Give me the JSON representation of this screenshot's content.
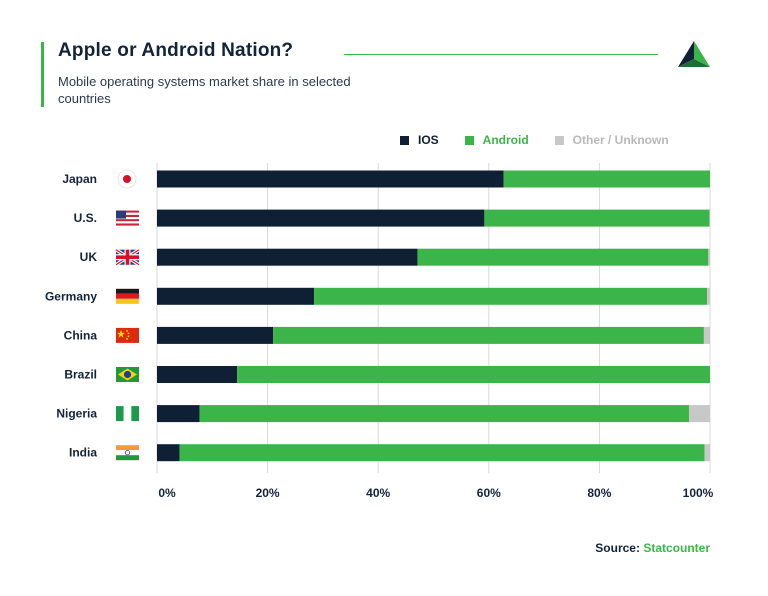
{
  "title": "Apple or Android Nation?",
  "subtitle": "Mobile operating systems market share in selected countries",
  "source_label": "Source:",
  "source_name": "Statcounter",
  "colors": {
    "ios": "#0f2034",
    "android": "#3bb54a",
    "other": "#c8c8c8",
    "accent": "#3bb54a",
    "grid": "#d9d9d9"
  },
  "chart_data": {
    "type": "bar",
    "orientation": "horizontal",
    "stacked": true,
    "title": "Apple or Android Nation?",
    "subtitle": "Mobile operating systems market share in selected countries",
    "categories": [
      "Japan",
      "U.S.",
      "UK",
      "Germany",
      "China",
      "Brazil",
      "Nigeria",
      "India"
    ],
    "flags": [
      "japan-flag-icon",
      "us-flag-icon",
      "uk-flag-icon",
      "germany-flag-icon",
      "china-flag-icon",
      "brazil-flag-icon",
      "nigeria-flag-icon",
      "india-flag-icon"
    ],
    "series": [
      {
        "name": "IOS",
        "color": "#0f2034",
        "values": [
          62.7,
          59.2,
          47.1,
          28.4,
          21.0,
          14.5,
          7.7,
          4.1
        ]
      },
      {
        "name": "Android",
        "color": "#3bb54a",
        "values": [
          37.3,
          40.7,
          52.6,
          71.1,
          77.9,
          85.5,
          88.5,
          94.9
        ]
      },
      {
        "name": "Other / Unknown",
        "color": "#c8c8c8",
        "values": [
          0.0,
          0.1,
          0.3,
          0.5,
          1.1,
          0.0,
          3.8,
          1.0
        ]
      }
    ],
    "xlim": [
      0,
      100
    ],
    "xticks": [
      "0%",
      "20%",
      "40%",
      "60%",
      "80%",
      "100%"
    ],
    "grid": true,
    "legend_position": "top-right"
  }
}
